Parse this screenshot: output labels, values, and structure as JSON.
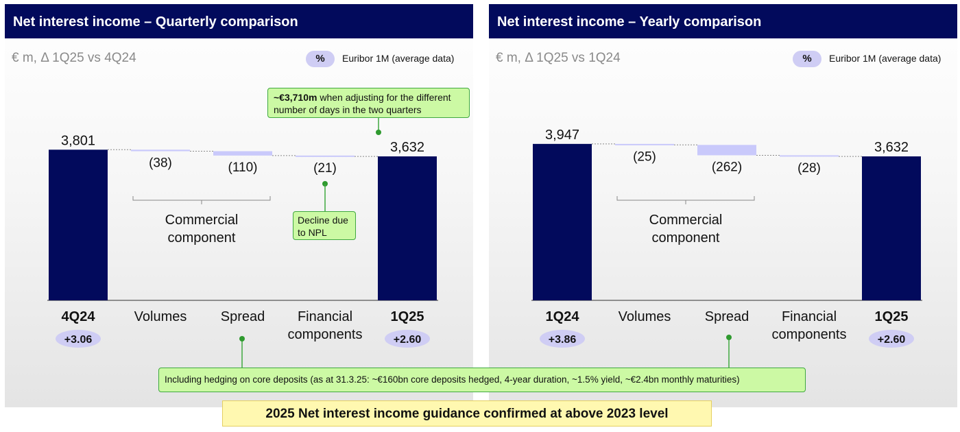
{
  "left_panel": {
    "title": "Net interest income – Quarterly comparison",
    "subtitle": "€ m, Δ 1Q25 vs 4Q24",
    "euribor_symbol": "%",
    "euribor_label": "Euribor 1M (average data)",
    "bracket_label": "Commercial component",
    "callout_top": {
      "bold": "~€3,710m",
      "text": " when adjusting for the different number of days in the two quarters"
    },
    "callout_npl": "Decline due to NPL"
  },
  "right_panel": {
    "title": "Net interest income – Yearly comparison",
    "subtitle": "€ m, Δ 1Q25 vs 1Q24",
    "euribor_symbol": "%",
    "euribor_label": "Euribor 1M (average data)",
    "bracket_label": "Commercial component"
  },
  "hedging_note": "Including hedging on core deposits (as at 31.3.25: ~€160bn core deposits hedged, 4-year duration, ~1.5% yield, ~€2.4bn monthly maturities)",
  "guidance": "2025 Net interest income guidance confirmed at above 2023 level",
  "colors": {
    "bar": "#020a5c",
    "delta": "#c9c9fb",
    "header": "#020a5c",
    "pill": "#cfcdf4",
    "callout": "#ccf9a4",
    "guidance": "#fff8b0"
  },
  "chart_data": [
    {
      "type": "bar",
      "subtype": "waterfall",
      "categories": [
        "4Q24",
        "Volumes",
        "Spread",
        "Financial components",
        "1Q25"
      ],
      "values": [
        3801,
        -38,
        -110,
        -21,
        3632
      ],
      "value_labels": [
        "3,801",
        "(38)",
        "(110)",
        "(21)",
        "3,632"
      ],
      "euribor": [
        "+3.06",
        null,
        null,
        null,
        "+2.60"
      ]
    },
    {
      "type": "bar",
      "subtype": "waterfall",
      "categories": [
        "1Q24",
        "Volumes",
        "Spread",
        "Financial components",
        "1Q25"
      ],
      "values": [
        3947,
        -25,
        -262,
        -28,
        3632
      ],
      "value_labels": [
        "3,947",
        "(25)",
        "(262)",
        "(28)",
        "3,632"
      ],
      "euribor": [
        "+3.86",
        null,
        null,
        null,
        "+2.60"
      ]
    }
  ]
}
